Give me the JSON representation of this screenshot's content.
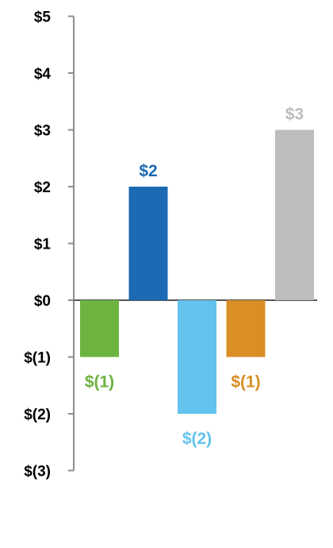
{
  "chart_data": {
    "type": "bar",
    "title": "",
    "xlabel": "",
    "ylabel": "",
    "ylim": [
      -3,
      5
    ],
    "grid": false,
    "legend": "none",
    "y_ticks": [
      {
        "value": 5,
        "label": "$5"
      },
      {
        "value": 4,
        "label": "$4"
      },
      {
        "value": 3,
        "label": "$3"
      },
      {
        "value": 2,
        "label": "$2"
      },
      {
        "value": 1,
        "label": "$1"
      },
      {
        "value": 0,
        "label": "$0"
      },
      {
        "value": -1,
        "label": "$(1)"
      },
      {
        "value": -2,
        "label": "$(2)"
      },
      {
        "value": -3,
        "label": "$(3)"
      }
    ],
    "bars": [
      {
        "value": -1,
        "label": "$(1)",
        "color": "#6db33f"
      },
      {
        "value": 2,
        "label": "$2",
        "color": "#1b6ab3"
      },
      {
        "value": -2,
        "label": "$(2)",
        "color": "#63c3ee"
      },
      {
        "value": -1,
        "label": "$(1)",
        "color": "#d98e26"
      },
      {
        "value": 3,
        "label": "$3",
        "color": "#bcbdbf"
      }
    ],
    "axis_color": "#8c8c8c"
  }
}
